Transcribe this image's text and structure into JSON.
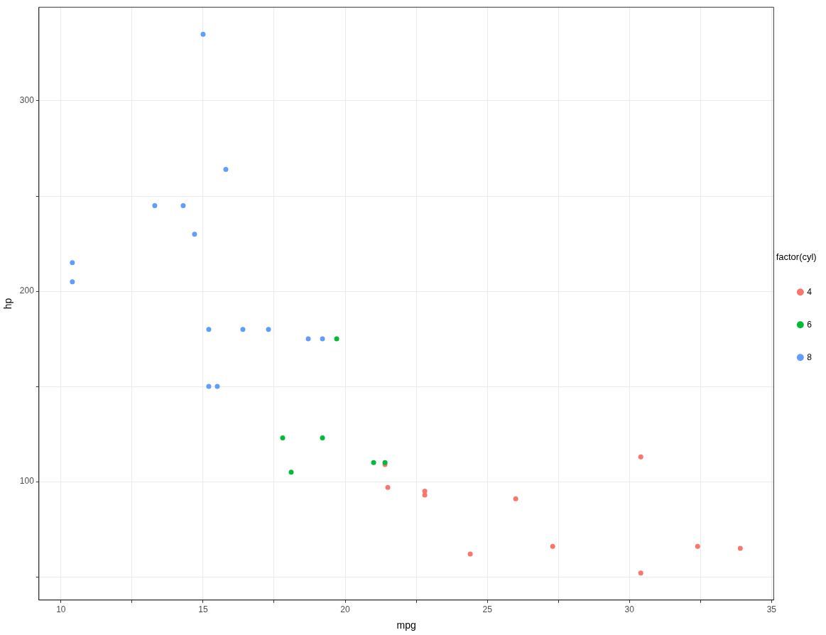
{
  "chart_data": {
    "type": "scatter",
    "xlabel": "mpg",
    "ylabel": "hp",
    "legend_title": "factor(cyl)",
    "xlim": [
      9.225,
      35.075
    ],
    "ylim": [
      37.85,
      349.15
    ],
    "xticks": [
      10,
      {
        "value": 12.5,
        "label": null
      },
      15,
      {
        "value": 17.5,
        "label": null
      },
      20,
      {
        "value": 22.5,
        "label": null
      },
      25,
      {
        "value": 27.5,
        "label": null
      },
      30,
      {
        "value": 32.5,
        "label": null
      },
      35
    ],
    "yticks": [
      {
        "value": 50,
        "label": null
      },
      100,
      {
        "value": 150,
        "label": null
      },
      200,
      {
        "value": 250,
        "label": null
      },
      300
    ],
    "grid": true,
    "legend": "right",
    "marker": "circle",
    "series": [
      {
        "name": "4",
        "color": "#f8766d",
        "x": [
          22.8,
          24.4,
          22.8,
          32.4,
          30.4,
          33.9,
          21.5,
          27.3,
          26.0,
          30.4,
          21.4
        ],
        "values": [
          93,
          62,
          95,
          66,
          52,
          65,
          97,
          66,
          91,
          113,
          109
        ]
      },
      {
        "name": "6",
        "color": "#00ba38",
        "x": [
          21.0,
          21.4,
          18.1,
          19.2,
          17.8,
          19.7
        ],
        "values": [
          110,
          110,
          105,
          123,
          123,
          175
        ]
      },
      {
        "name": "8",
        "color": "#619cff",
        "x": [
          18.7,
          14.3,
          16.4,
          17.3,
          15.2,
          10.4,
          10.4,
          14.7,
          15.5,
          15.2,
          13.3,
          19.2,
          15.8,
          15.0
        ],
        "values": [
          175,
          245,
          180,
          180,
          180,
          205,
          215,
          230,
          150,
          150,
          245,
          175,
          264,
          335
        ]
      }
    ]
  }
}
